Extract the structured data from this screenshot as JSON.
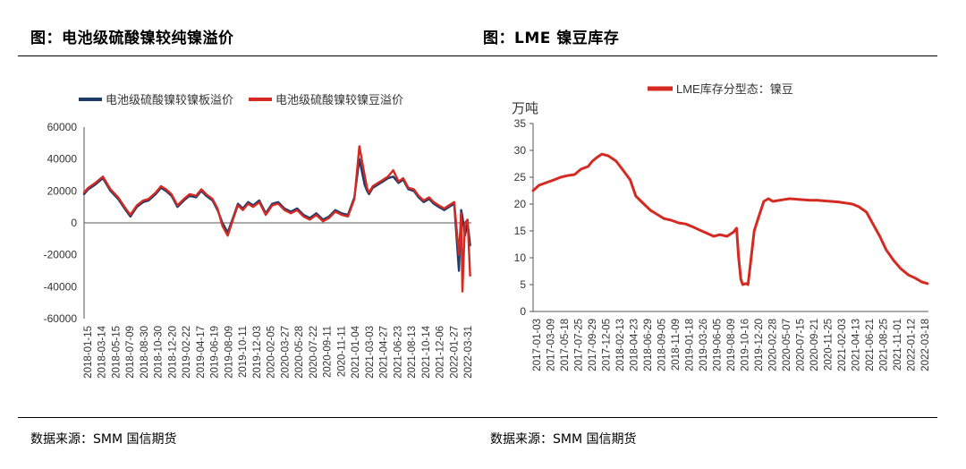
{
  "left_panel": {
    "title": "图：电池级硫酸镍较纯镍溢价",
    "source": "数据来源：SMM 国信期货"
  },
  "right_panel": {
    "title": "图：LME 镍豆库存",
    "source": "数据来源：SMM 国信期货"
  },
  "colors": {
    "blue": "#1f3b6e",
    "red": "#d42a22"
  },
  "chart_data": [
    {
      "type": "line",
      "title": "",
      "ylabel": "",
      "ylim": [
        -60000,
        60000
      ],
      "yticks": [
        60000,
        40000,
        20000,
        0,
        -20000,
        -40000,
        -60000
      ],
      "ytick_labels": [
        "60000",
        "40000",
        "20000",
        "0",
        "-20000",
        "-40000",
        "-60000"
      ],
      "xlim": [
        "2018-01-15",
        "2022-04-20"
      ],
      "xtick_labels": [
        "2018-01-15",
        "2018-03-14",
        "2018-05-15",
        "2018-07-09",
        "2018-08-30",
        "2018-10-30",
        "2018-12-20",
        "2019-02-22",
        "2019-04-17",
        "2019-06-19",
        "2019-08-09",
        "2019-10-11",
        "2019-12-03",
        "2020-02-05",
        "2020-03-27",
        "2020-05-28",
        "2020-07-22",
        "2020-09-11",
        "2020-11-11",
        "2021-01-04",
        "2021-03-03",
        "2021-04-27",
        "2021-06-23",
        "2021-08-13",
        "2021-10-14",
        "2021-12-06",
        "2022-01-27",
        "2022-03-31"
      ],
      "legend": {
        "position": "top",
        "entries": [
          "电池级硫酸镍较镍板溢价",
          "电池级硫酸镍较镍豆溢价"
        ]
      },
      "series": [
        {
          "name": "电池级硫酸镍较镍板溢价",
          "color": "#1f3b6e",
          "x": [
            "2018-01-15",
            "2018-02-01",
            "2018-03-01",
            "2018-04-01",
            "2018-05-01",
            "2018-06-01",
            "2018-07-01",
            "2018-07-20",
            "2018-08-15",
            "2018-09-10",
            "2018-10-01",
            "2018-10-30",
            "2018-11-20",
            "2018-12-10",
            "2019-01-01",
            "2019-01-25",
            "2019-02-20",
            "2019-03-15",
            "2019-04-10",
            "2019-05-01",
            "2019-05-20",
            "2019-06-15",
            "2019-07-05",
            "2019-07-25",
            "2019-08-15",
            "2019-09-05",
            "2019-09-25",
            "2019-10-15",
            "2019-11-05",
            "2019-11-25",
            "2019-12-20",
            "2020-01-15",
            "2020-02-10",
            "2020-03-05",
            "2020-03-30",
            "2020-04-25",
            "2020-05-20",
            "2020-06-15",
            "2020-07-10",
            "2020-08-05",
            "2020-09-01",
            "2020-09-25",
            "2020-10-20",
            "2020-11-15",
            "2020-12-10",
            "2021-01-05",
            "2021-01-25",
            "2021-02-15",
            "2021-02-25",
            "2021-03-05",
            "2021-03-20",
            "2021-04-10",
            "2021-05-01",
            "2021-05-20",
            "2021-06-10",
            "2021-07-01",
            "2021-07-20",
            "2021-08-10",
            "2021-09-01",
            "2021-09-20",
            "2021-10-10",
            "2021-11-01",
            "2021-11-20",
            "2021-12-10",
            "2022-01-01",
            "2022-01-20",
            "2022-02-10",
            "2022-03-01",
            "2022-03-10",
            "2022-03-15",
            "2022-03-25",
            "2022-04-05",
            "2022-04-15"
          ],
          "y": [
            18000,
            21000,
            24000,
            28000,
            20000,
            15000,
            8000,
            4000,
            10000,
            13000,
            14000,
            18000,
            22000,
            20000,
            17000,
            10000,
            14000,
            17000,
            16000,
            20000,
            17000,
            14000,
            8000,
            0,
            -6000,
            3000,
            12000,
            9000,
            13000,
            11000,
            14000,
            6000,
            12000,
            13000,
            9000,
            7000,
            9000,
            5000,
            3000,
            6000,
            2000,
            4000,
            8000,
            6000,
            5000,
            16000,
            40000,
            24000,
            20000,
            18000,
            22000,
            24000,
            26000,
            28000,
            29000,
            25000,
            27000,
            21000,
            20000,
            16000,
            13000,
            15000,
            12000,
            10000,
            8000,
            10000,
            12000,
            -30000,
            8000,
            4000,
            -8000,
            0,
            -14000
          ]
        },
        {
          "name": "电池级硫酸镍较镍豆溢价",
          "color": "#d42a22",
          "x": [
            "2018-01-15",
            "2018-02-01",
            "2018-03-01",
            "2018-04-01",
            "2018-05-01",
            "2018-06-01",
            "2018-07-01",
            "2018-07-20",
            "2018-08-15",
            "2018-09-10",
            "2018-10-01",
            "2018-10-30",
            "2018-11-20",
            "2018-12-10",
            "2019-01-01",
            "2019-01-25",
            "2019-02-20",
            "2019-03-15",
            "2019-04-10",
            "2019-05-01",
            "2019-05-20",
            "2019-06-15",
            "2019-07-05",
            "2019-07-25",
            "2019-08-15",
            "2019-09-05",
            "2019-09-25",
            "2019-10-15",
            "2019-11-05",
            "2019-11-25",
            "2019-12-20",
            "2020-01-15",
            "2020-02-10",
            "2020-03-05",
            "2020-03-30",
            "2020-04-25",
            "2020-05-20",
            "2020-06-15",
            "2020-07-10",
            "2020-08-05",
            "2020-09-01",
            "2020-09-25",
            "2020-10-20",
            "2020-11-15",
            "2020-12-10",
            "2021-01-05",
            "2021-01-25",
            "2021-02-15",
            "2021-02-25",
            "2021-03-05",
            "2021-03-20",
            "2021-04-10",
            "2021-05-01",
            "2021-05-20",
            "2021-06-10",
            "2021-07-01",
            "2021-07-20",
            "2021-08-10",
            "2021-09-01",
            "2021-09-20",
            "2021-10-10",
            "2021-11-01",
            "2021-11-20",
            "2021-12-10",
            "2022-01-01",
            "2022-01-20",
            "2022-02-10",
            "2022-03-01",
            "2022-03-10",
            "2022-03-15",
            "2022-03-25",
            "2022-04-05",
            "2022-04-15"
          ],
          "y": [
            19000,
            22000,
            25000,
            29000,
            21000,
            16000,
            9000,
            5000,
            11000,
            14000,
            15000,
            19000,
            23000,
            21000,
            18000,
            11000,
            15000,
            18000,
            17000,
            21000,
            18000,
            15000,
            9000,
            -2000,
            -8000,
            2000,
            11000,
            8000,
            12000,
            10000,
            13000,
            5000,
            11000,
            12000,
            8000,
            6000,
            8000,
            4000,
            2000,
            5000,
            1000,
            3000,
            7000,
            5000,
            4000,
            15000,
            48000,
            30000,
            22000,
            19000,
            23000,
            25000,
            27000,
            29000,
            33000,
            26000,
            28000,
            22000,
            21000,
            17000,
            14000,
            16000,
            13000,
            11000,
            9000,
            11000,
            13000,
            -20000,
            6000,
            -43000,
            0,
            2000,
            -33000
          ]
        }
      ]
    },
    {
      "type": "line",
      "title": "",
      "ylabel": "万吨",
      "ylim": [
        0,
        35
      ],
      "yticks": [
        0,
        5,
        10,
        15,
        20,
        25,
        30,
        35
      ],
      "ytick_labels": [
        "0",
        "5",
        "10",
        "15",
        "20",
        "25",
        "30",
        "35"
      ],
      "xlim": [
        "2017-01-03",
        "2022-04-20"
      ],
      "xtick_labels": [
        "2017-01-03",
        "2017-03-09",
        "2017-05-18",
        "2017-07-25",
        "2017-09-29",
        "2017-12-05",
        "2018-02-13",
        "2018-04-23",
        "2018-06-29",
        "2018-09-05",
        "2018-11-09",
        "2019-01-18",
        "2019-03-26",
        "2019-06-05",
        "2019-08-09",
        "2019-10-16",
        "2019-12-20",
        "2020-02-28",
        "2020-05-07",
        "2020-07-15",
        "2020-09-21",
        "2020-11-25",
        "2021-02-03",
        "2021-04-13",
        "2021-06-21",
        "2021-08-25",
        "2021-11-01",
        "2022-01-12",
        "2022-03-18"
      ],
      "legend": {
        "position": "top",
        "entries": [
          "LME库存分型态：镍豆"
        ]
      },
      "series": [
        {
          "name": "LME库存分型态：镍豆",
          "color": "#d42a22",
          "x": [
            "2017-01-03",
            "2017-02-01",
            "2017-03-09",
            "2017-04-15",
            "2017-05-18",
            "2017-06-20",
            "2017-07-25",
            "2017-08-25",
            "2017-09-29",
            "2017-10-20",
            "2017-11-15",
            "2017-12-05",
            "2018-01-05",
            "2018-02-13",
            "2018-03-15",
            "2018-04-23",
            "2018-05-20",
            "2018-06-29",
            "2018-08-01",
            "2018-09-05",
            "2018-10-05",
            "2018-11-09",
            "2018-12-15",
            "2019-01-18",
            "2019-02-20",
            "2019-03-26",
            "2019-05-01",
            "2019-06-05",
            "2019-07-05",
            "2019-08-09",
            "2019-09-10",
            "2019-09-25",
            "2019-10-05",
            "2019-10-16",
            "2019-10-25",
            "2019-11-10",
            "2019-11-20",
            "2019-12-05",
            "2019-12-20",
            "2020-01-10",
            "2020-02-05",
            "2020-02-28",
            "2020-03-20",
            "2020-05-07",
            "2020-06-10",
            "2020-07-15",
            "2020-08-20",
            "2020-09-21",
            "2020-10-25",
            "2020-11-25",
            "2020-12-30",
            "2021-02-03",
            "2021-03-10",
            "2021-04-13",
            "2021-05-15",
            "2021-06-21",
            "2021-07-20",
            "2021-08-25",
            "2021-09-25",
            "2021-11-01",
            "2021-12-05",
            "2022-01-12",
            "2022-02-15",
            "2022-03-18",
            "2022-04-15"
          ],
          "y": [
            22.5,
            23.5,
            24.0,
            24.5,
            25.0,
            25.3,
            25.5,
            26.5,
            27.0,
            28.0,
            28.8,
            29.3,
            29.0,
            28.0,
            26.5,
            24.5,
            21.5,
            20.0,
            18.8,
            18.0,
            17.3,
            17.0,
            16.5,
            16.3,
            15.8,
            15.2,
            14.6,
            14.0,
            14.3,
            14.0,
            14.8,
            15.5,
            10.0,
            6.0,
            5.0,
            5.2,
            5.0,
            10.0,
            15.0,
            17.5,
            20.5,
            21.0,
            20.5,
            20.8,
            21.0,
            20.9,
            20.8,
            20.7,
            20.7,
            20.6,
            20.5,
            20.4,
            20.2,
            20.0,
            19.5,
            18.5,
            16.5,
            14.0,
            11.5,
            9.5,
            8.0,
            6.8,
            6.2,
            5.5,
            5.2
          ]
        }
      ]
    }
  ]
}
